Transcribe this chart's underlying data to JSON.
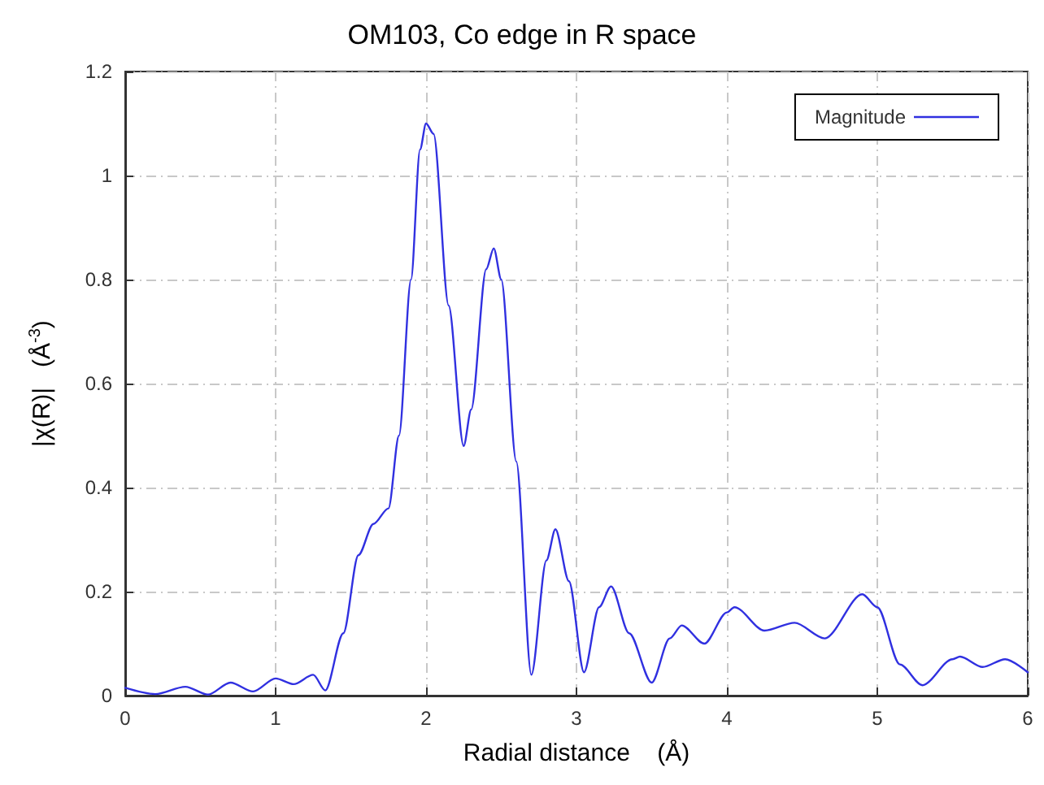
{
  "chart_data": {
    "type": "line",
    "title": "OM103, Co edge in R space",
    "xlabel": "Radial distance    (Å)",
    "ylabel": "|χ(R)|   (Å$^{-3}$)",
    "xlim": [
      0,
      6
    ],
    "xticks": [
      0,
      1,
      2,
      3,
      4,
      5,
      6
    ],
    "ylim": [
      0,
      1.2
    ],
    "yticks": [
      0,
      0.2,
      0.4,
      0.6,
      0.8,
      1,
      1.2
    ],
    "grid": true,
    "legend": "top right",
    "marker": "none",
    "line_style": "solid",
    "series": [
      {
        "name": "Magnitude",
        "color": "#3030e0",
        "x": [
          0,
          0.2,
          0.4,
          0.55,
          0.7,
          0.85,
          1.0,
          1.12,
          1.25,
          1.33,
          1.45,
          1.55,
          1.65,
          1.75,
          1.82,
          1.9,
          1.96,
          2.0,
          2.05,
          2.15,
          2.25,
          2.3,
          2.4,
          2.45,
          2.5,
          2.6,
          2.7,
          2.8,
          2.86,
          2.95,
          3.05,
          3.15,
          3.23,
          3.35,
          3.5,
          3.62,
          3.7,
          3.85,
          4.0,
          4.05,
          4.25,
          4.45,
          4.65,
          4.9,
          5.0,
          5.15,
          5.3,
          5.5,
          5.55,
          5.7,
          5.85,
          6.0
        ],
        "values": [
          0.015,
          0.003,
          0.017,
          0.002,
          0.025,
          0.008,
          0.033,
          0.022,
          0.04,
          0.01,
          0.12,
          0.27,
          0.33,
          0.36,
          0.5,
          0.8,
          1.05,
          1.1,
          1.08,
          0.75,
          0.48,
          0.55,
          0.82,
          0.86,
          0.8,
          0.45,
          0.04,
          0.26,
          0.32,
          0.22,
          0.045,
          0.17,
          0.21,
          0.12,
          0.025,
          0.11,
          0.135,
          0.1,
          0.16,
          0.17,
          0.125,
          0.14,
          0.11,
          0.195,
          0.17,
          0.06,
          0.02,
          0.07,
          0.075,
          0.055,
          0.07,
          0.045
        ]
      }
    ]
  }
}
